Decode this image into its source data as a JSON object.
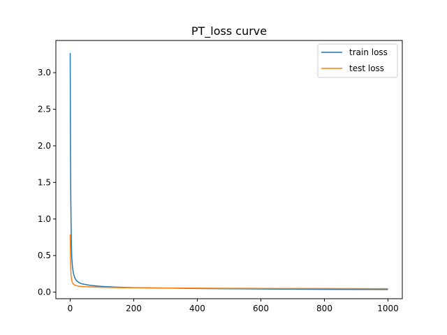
{
  "chart_data": {
    "type": "line",
    "title": "PT_loss curve",
    "xlabel": "",
    "ylabel": "",
    "xlim": [
      -45,
      1045
    ],
    "ylim": [
      -0.09,
      3.44
    ],
    "xticks": [
      0,
      200,
      400,
      600,
      800,
      1000
    ],
    "xtick_labels": [
      "0",
      "200",
      "400",
      "600",
      "800",
      "1000"
    ],
    "yticks": [
      0.0,
      0.5,
      1.0,
      1.5,
      2.0,
      2.5,
      3.0
    ],
    "ytick_labels": [
      "0.0",
      "0.5",
      "1.0",
      "1.5",
      "2.0",
      "2.5",
      "3.0"
    ],
    "grid": false,
    "legend_position": "top-right",
    "series": [
      {
        "name": "train loss",
        "color": "#1f77b4",
        "x": [
          0,
          1,
          2,
          3,
          4,
          5,
          7,
          10,
          15,
          20,
          30,
          40,
          60,
          80,
          100,
          150,
          200,
          300,
          400,
          500,
          600,
          700,
          800,
          900,
          1000
        ],
        "y": [
          3.27,
          1.9,
          1.25,
          0.9,
          0.65,
          0.48,
          0.35,
          0.26,
          0.19,
          0.155,
          0.125,
          0.11,
          0.095,
          0.085,
          0.078,
          0.068,
          0.062,
          0.055,
          0.05,
          0.046,
          0.043,
          0.04,
          0.038,
          0.036,
          0.035
        ]
      },
      {
        "name": "test loss",
        "color": "#ff7f0e",
        "x": [
          0,
          1,
          2,
          3,
          5,
          7,
          10,
          15,
          20,
          30,
          40,
          60,
          80,
          100,
          150,
          200,
          250,
          300,
          350,
          400,
          450,
          500,
          550,
          600,
          650,
          700,
          750,
          800,
          850,
          900,
          950,
          1000
        ],
        "y": [
          0.79,
          0.45,
          0.3,
          0.22,
          0.16,
          0.13,
          0.11,
          0.095,
          0.087,
          0.08,
          0.076,
          0.072,
          0.069,
          0.066,
          0.062,
          0.06,
          0.058,
          0.056,
          0.055,
          0.054,
          0.053,
          0.052,
          0.052,
          0.051,
          0.05,
          0.05,
          0.049,
          0.049,
          0.048,
          0.048,
          0.047,
          0.047
        ]
      }
    ]
  }
}
